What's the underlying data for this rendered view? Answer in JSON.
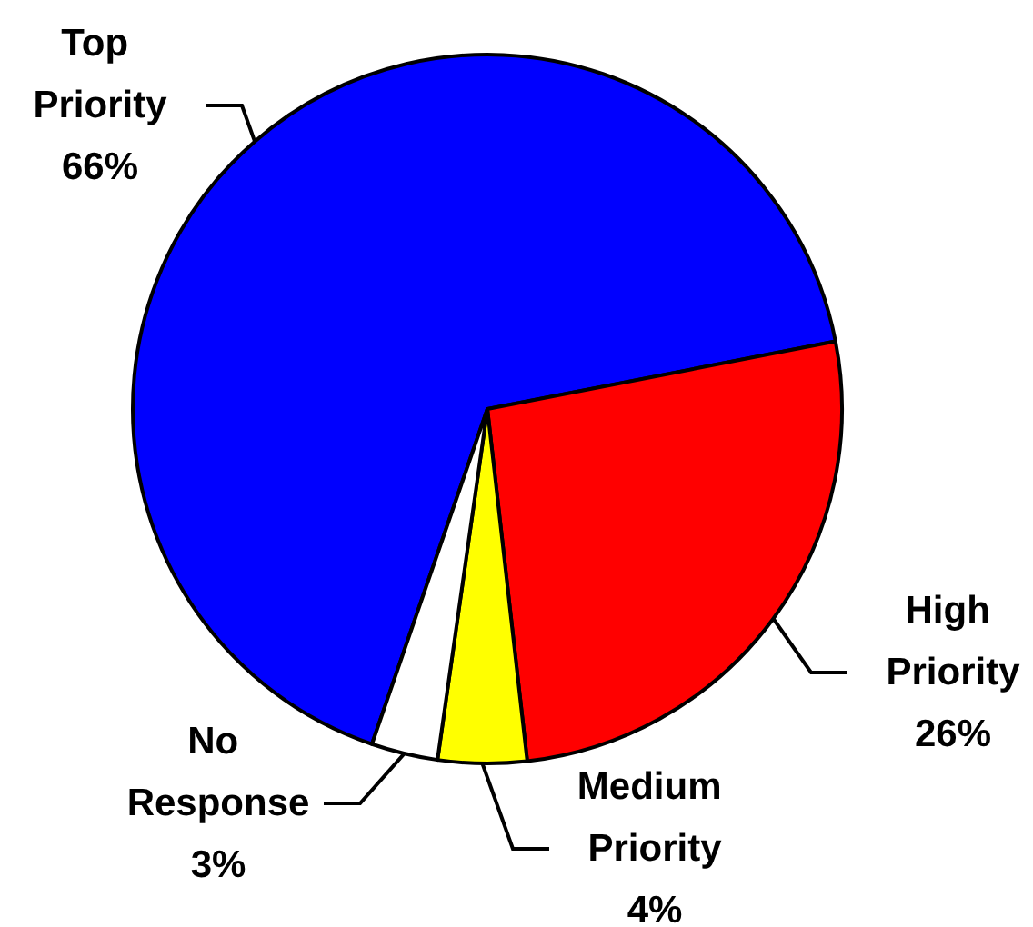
{
  "chart_data": {
    "type": "pie",
    "categories": [
      "Top Priority",
      "High Priority",
      "Medium Priority",
      "No Response"
    ],
    "values": [
      66,
      26,
      4,
      3
    ],
    "colors": [
      "#0000ff",
      "#ff0000",
      "#ffff00",
      "#ffffff"
    ],
    "value_labels": [
      "66%",
      "26%",
      "4%",
      "3%"
    ]
  }
}
